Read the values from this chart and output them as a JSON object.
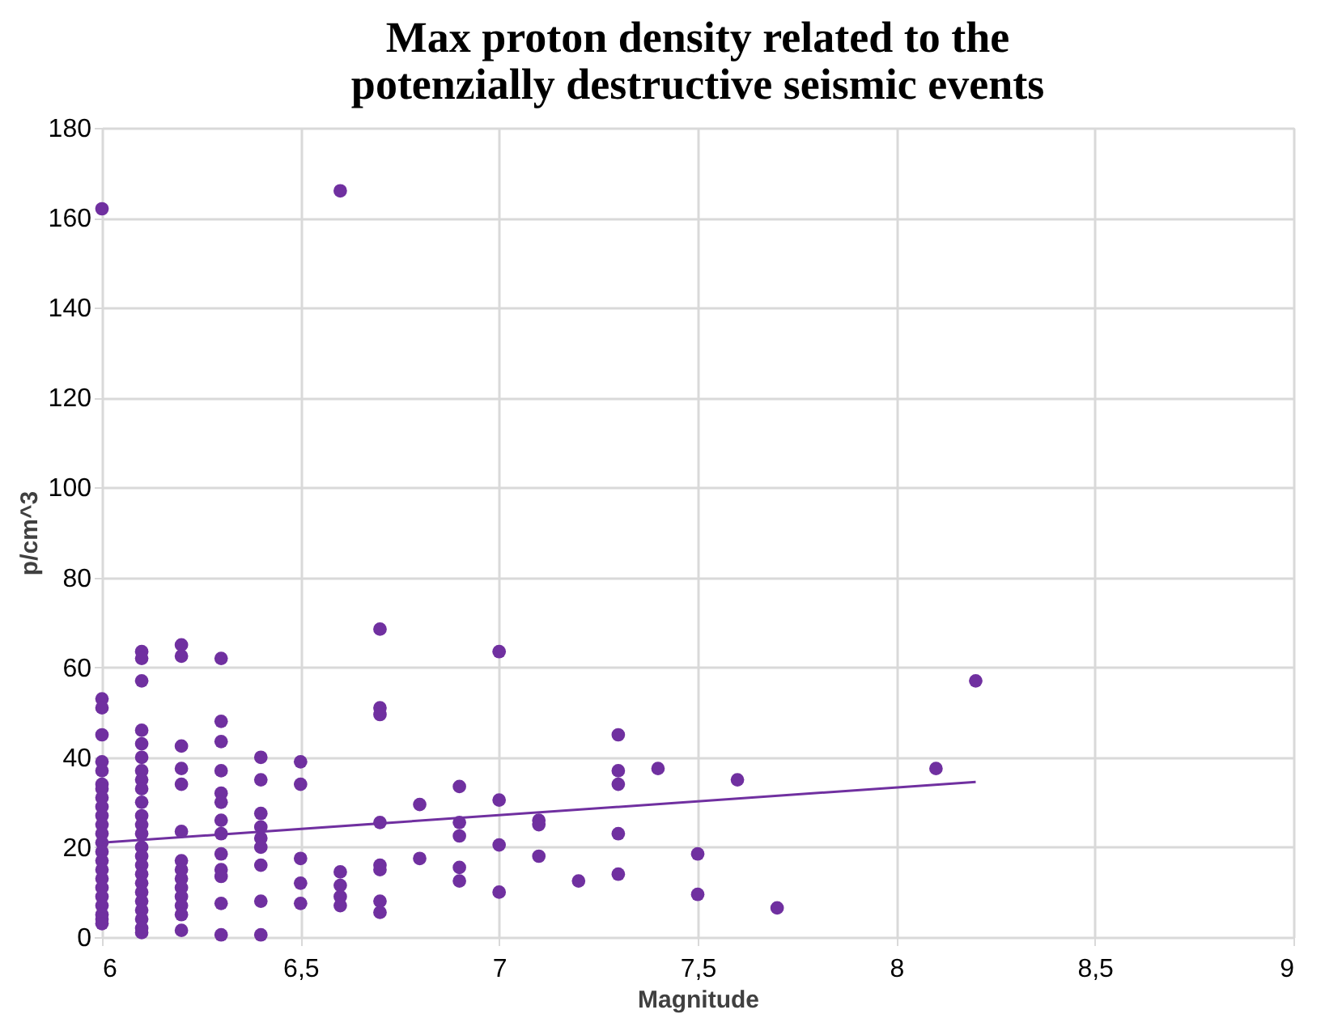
{
  "chart_data": {
    "type": "scatter",
    "title": "Max proton density related to the potenzially destructive seismic events",
    "xlabel": "Magnitude",
    "ylabel": "p/cm^3",
    "xlim": [
      6,
      9
    ],
    "xticks": [
      6,
      {
        "value": 6.5,
        "label": "6,5"
      },
      7,
      {
        "value": 7.5,
        "label": "7,5"
      },
      8,
      {
        "value": 8.5,
        "label": "8,5"
      },
      9
    ],
    "ylim": [
      0,
      180
    ],
    "yticks": [
      0,
      20,
      40,
      60,
      80,
      100,
      120,
      140,
      160,
      180
    ],
    "grid": true,
    "series": [
      {
        "marker": "circle",
        "color": "#7030a0",
        "x": [
          6,
          6,
          6,
          6,
          6,
          6,
          6,
          6,
          6,
          6,
          6,
          6,
          6,
          6,
          6,
          6,
          6,
          6,
          6,
          6,
          6,
          6,
          6,
          6,
          6.1,
          6.1,
          6.1,
          6.1,
          6.1,
          6.1,
          6.1,
          6.1,
          6.1,
          6.1,
          6.1,
          6.1,
          6.1,
          6.1,
          6.1,
          6.1,
          6.1,
          6.1,
          6.1,
          6.1,
          6.1,
          6.1,
          6.1,
          6.1,
          6.2,
          6.2,
          6.2,
          6.2,
          6.2,
          6.2,
          6.2,
          6.2,
          6.2,
          6.2,
          6.2,
          6.2,
          6.2,
          6.2,
          6.3,
          6.3,
          6.3,
          6.3,
          6.3,
          6.3,
          6.3,
          6.3,
          6.3,
          6.3,
          6.3,
          6.3,
          6.3,
          6.4,
          6.4,
          6.4,
          6.4,
          6.4,
          6.4,
          6.4,
          6.4,
          6.4,
          6.5,
          6.5,
          6.5,
          6.5,
          6.5,
          6.6,
          6.6,
          6.6,
          6.6,
          6.6,
          6.7,
          6.7,
          6.7,
          6.7,
          6.7,
          6.7,
          6.7,
          6.7,
          6.8,
          6.8,
          6.9,
          6.9,
          6.9,
          6.9,
          6.9,
          7,
          7,
          7,
          7,
          7.1,
          7.1,
          7.1,
          7.2,
          7.3,
          7.3,
          7.3,
          7.3,
          7.3,
          7.4,
          7.5,
          7.5,
          7.6,
          7.7,
          8.1,
          8.2
        ],
        "values": [
          162,
          53,
          51,
          45,
          39,
          37,
          34,
          33,
          31,
          29,
          27,
          25,
          23,
          21,
          19,
          17,
          15,
          13,
          11,
          9,
          7,
          5,
          4,
          3,
          63.5,
          62,
          57,
          46,
          43,
          40,
          37,
          35,
          33,
          30,
          27,
          25,
          23,
          20,
          18,
          16,
          14,
          12,
          10,
          8,
          6,
          4,
          2,
          1,
          65,
          62.5,
          42.5,
          37.5,
          34,
          23.5,
          17,
          15,
          13,
          11,
          9,
          7,
          5,
          1.5,
          62,
          48,
          43.5,
          37,
          32,
          30,
          26,
          23,
          18.5,
          15,
          13.5,
          7.5,
          0.5,
          40,
          35,
          27.5,
          24.5,
          22,
          20,
          16,
          8,
          0.5,
          39,
          34,
          17.5,
          12,
          7.5,
          166,
          14.5,
          11.5,
          9,
          7,
          68.5,
          51,
          49.5,
          25.5,
          16,
          15,
          8,
          5.5,
          29.5,
          17.5,
          33.5,
          25.5,
          22.5,
          15.5,
          12.5,
          63.5,
          30.5,
          20.5,
          10,
          26,
          25,
          18,
          12.5,
          45,
          37,
          34,
          23,
          14,
          37.5,
          18.5,
          9.5,
          35,
          6.5,
          37.5,
          57
        ]
      },
      {
        "type": "line",
        "marker": "none",
        "color": "#7030a0",
        "x": [
          6,
          8.2
        ],
        "values": [
          21,
          34.5
        ]
      }
    ]
  }
}
